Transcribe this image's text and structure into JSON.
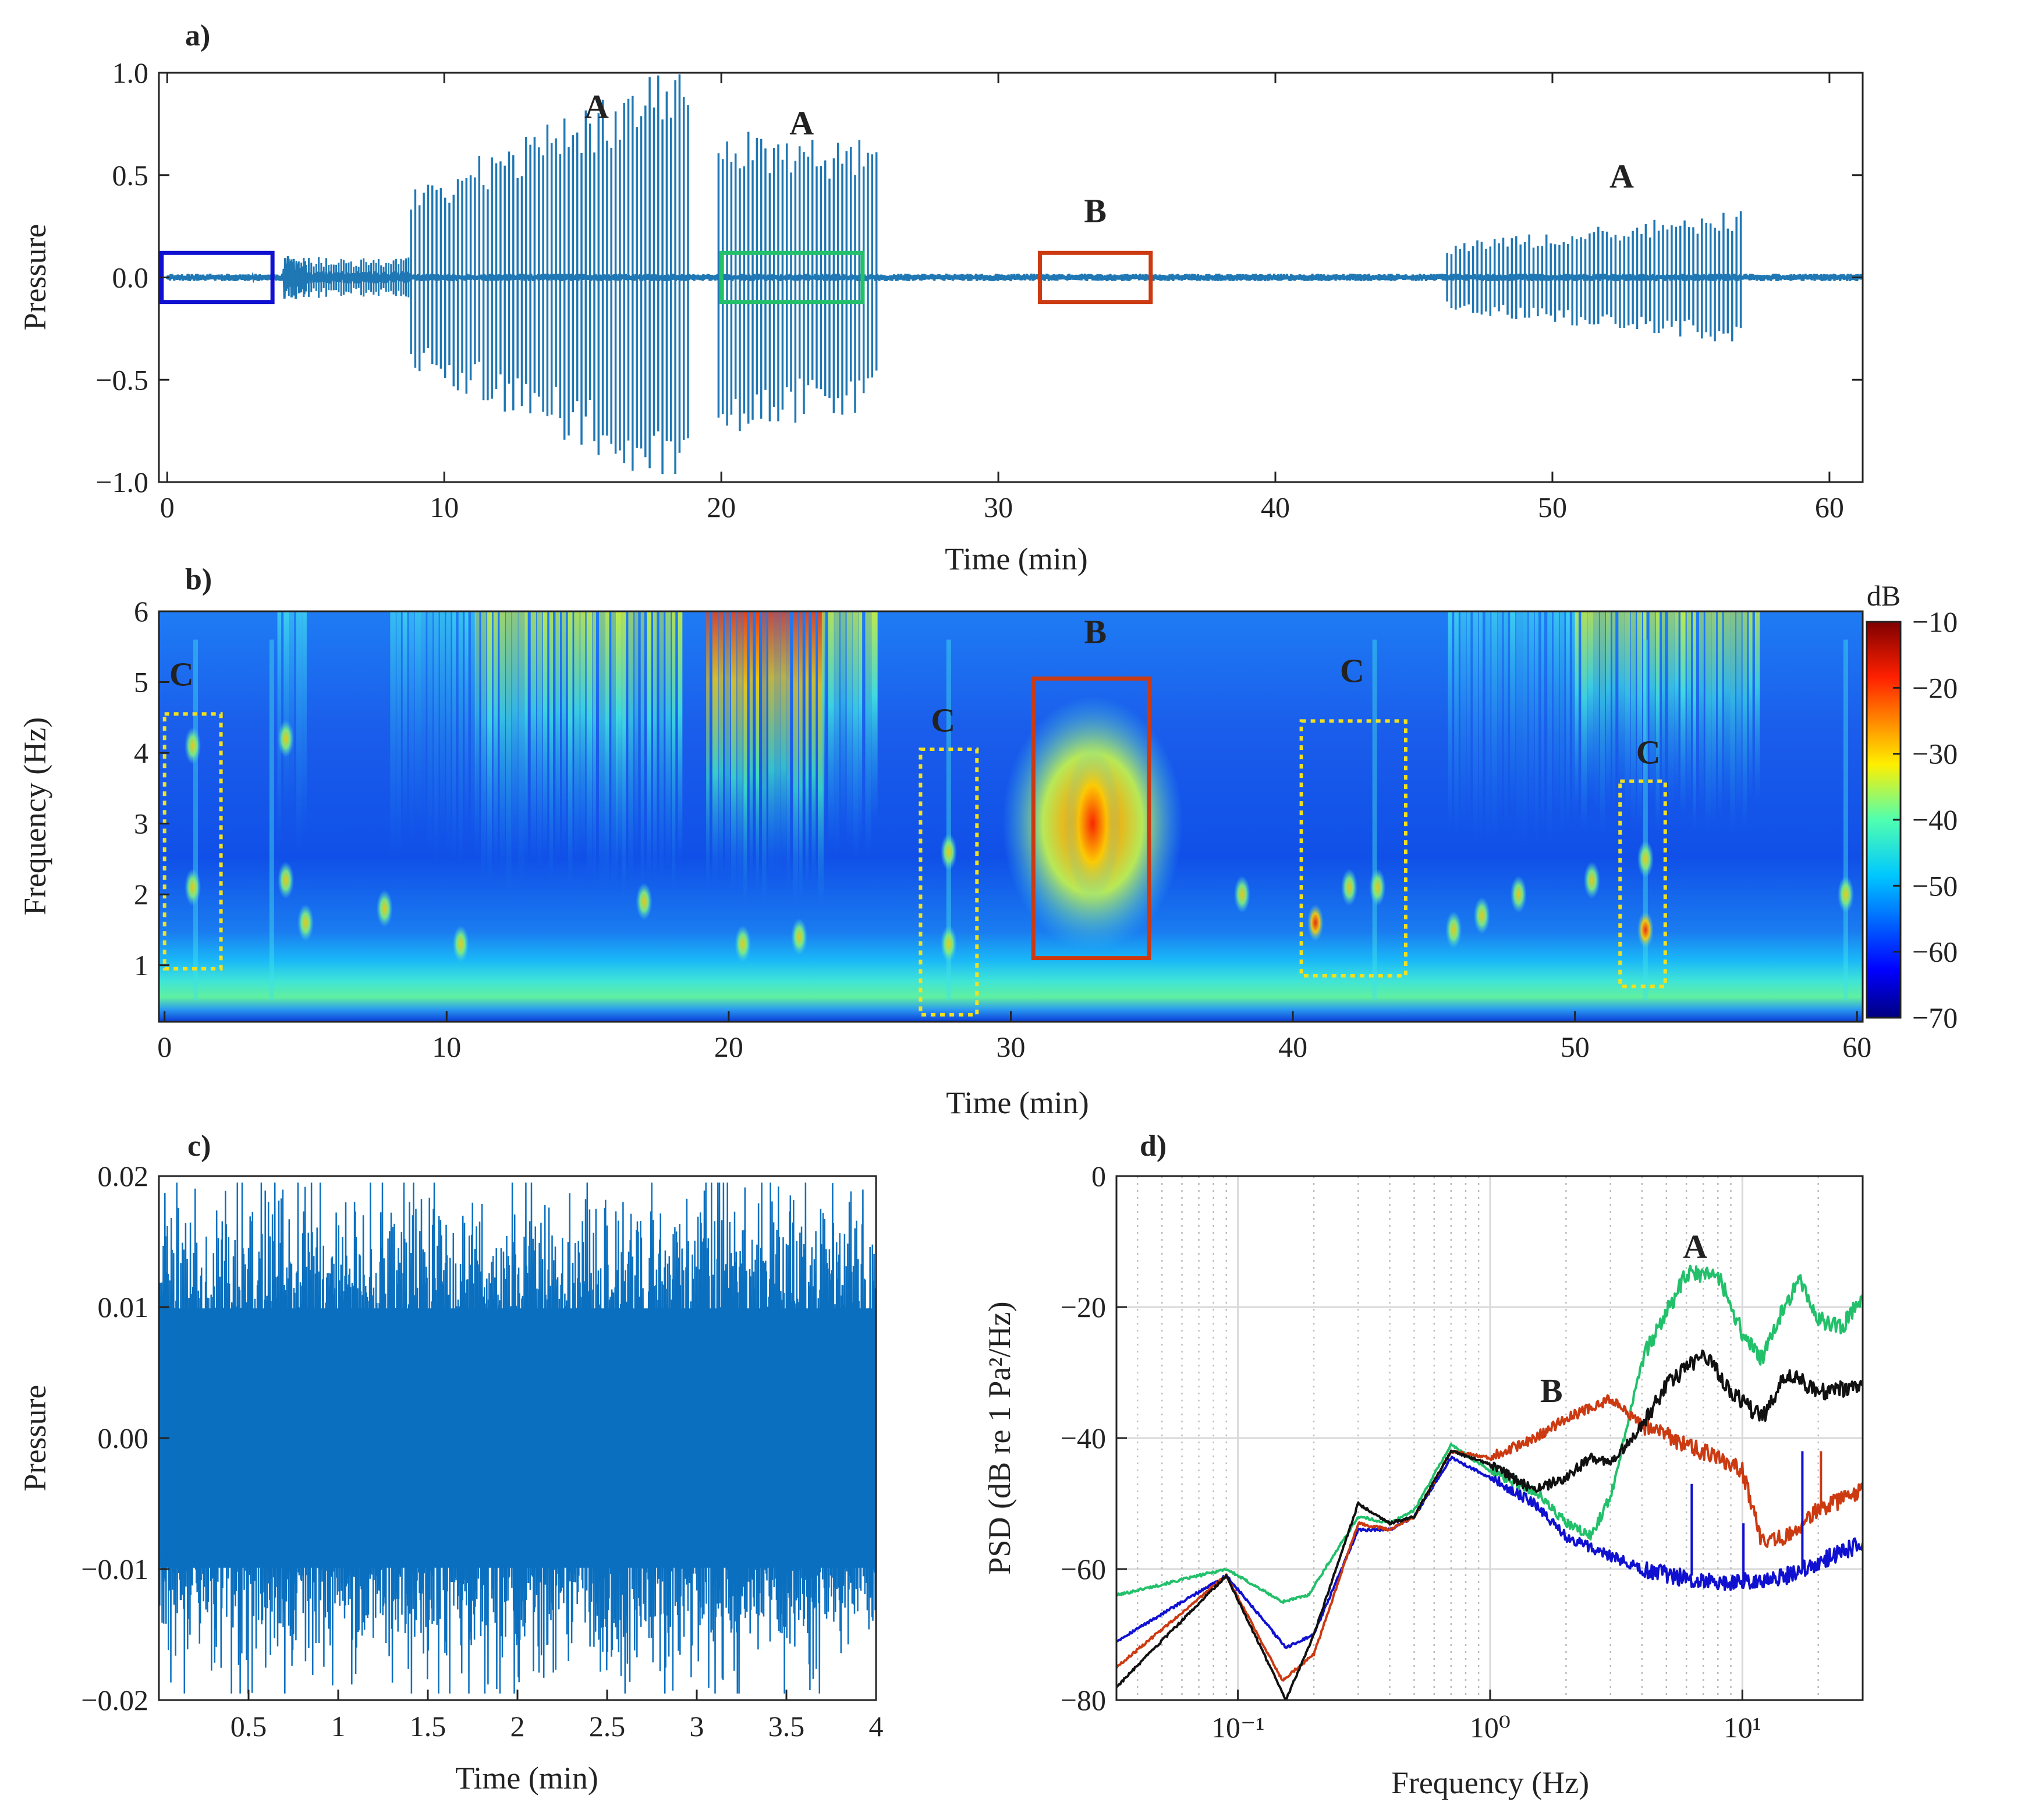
{
  "chart_data": [
    {
      "panel": "a)",
      "type": "line",
      "xlabel": "Time (min)",
      "ylabel": "Pressure",
      "xlim": [
        -0.3,
        61.2
      ],
      "ylim": [
        -1.0,
        1.0
      ],
      "xticks": [
        "0",
        "10",
        "20",
        "30",
        "40",
        "50",
        "60"
      ],
      "yticks": [
        "−1.0",
        "−0.5",
        "0.0",
        "0.5",
        "1.0"
      ],
      "series_color": "#1f77b4",
      "pulse_groups": [
        {
          "x_start": 8.8,
          "x_end": 18.8,
          "peak_start": 0.4,
          "peak_end": 1.0
        },
        {
          "x_start": 19.9,
          "x_end": 25.6,
          "peak_start": 0.7,
          "peak_end": 0.6
        },
        {
          "x_start": 46.2,
          "x_end": 56.8,
          "peak_start": 0.15,
          "peak_end": 0.3
        }
      ],
      "annotations": [
        {
          "text": "A",
          "x": 15.5,
          "y": 0.78
        },
        {
          "text": "A",
          "x": 22.9,
          "y": 0.7
        },
        {
          "text": "B",
          "x": 33.5,
          "y": 0.27
        },
        {
          "text": "A",
          "x": 52.5,
          "y": 0.44
        }
      ],
      "boxes": [
        {
          "x0": -0.2,
          "x1": 3.8,
          "y0": -0.12,
          "y1": 0.12,
          "color": "#1010d0",
          "style": "solid"
        },
        {
          "x0": 20.0,
          "x1": 25.1,
          "y0": -0.12,
          "y1": 0.12,
          "color": "#22c06a",
          "style": "solid"
        },
        {
          "x0": 31.5,
          "x1": 35.5,
          "y0": -0.12,
          "y1": 0.12,
          "color": "#cc3a12",
          "style": "solid"
        }
      ]
    },
    {
      "panel": "b)",
      "type": "heatmap",
      "xlabel": "Time (min)",
      "ylabel": "Frequency (Hz)",
      "xlim": [
        -0.2,
        60.2
      ],
      "ylim": [
        0.2,
        6.0
      ],
      "xticks": [
        "0",
        "10",
        "20",
        "30",
        "40",
        "50",
        "60"
      ],
      "yticks": [
        "1",
        "2",
        "3",
        "4",
        "5",
        "6"
      ],
      "colorbar": {
        "label": "dB",
        "min": -70,
        "max": -10,
        "ticks": [
          "−10",
          "−20",
          "−30",
          "−40",
          "−50",
          "−60",
          "−70"
        ]
      },
      "annotations": [
        {
          "text": "C",
          "x": 0.6,
          "y": 4.95
        },
        {
          "text": "C",
          "x": 27.6,
          "y": 4.3
        },
        {
          "text": "B",
          "x": 33.0,
          "y": 5.55
        },
        {
          "text": "C",
          "x": 42.1,
          "y": 5.0
        },
        {
          "text": "C",
          "x": 52.6,
          "y": 3.85
        }
      ],
      "boxes": [
        {
          "x0": 0.0,
          "x1": 2.0,
          "y0": 0.95,
          "y1": 4.55,
          "color": "#f0e020",
          "style": "dotted"
        },
        {
          "x0": 26.8,
          "x1": 28.8,
          "y0": 0.3,
          "y1": 4.05,
          "color": "#f0e020",
          "style": "dotted"
        },
        {
          "x0": 30.8,
          "x1": 34.9,
          "y0": 1.1,
          "y1": 5.05,
          "color": "#cc3a12",
          "style": "solid"
        },
        {
          "x0": 40.3,
          "x1": 44.0,
          "y0": 0.85,
          "y1": 4.45,
          "color": "#f0e020",
          "style": "dotted"
        },
        {
          "x0": 51.6,
          "x1": 53.2,
          "y0": 0.7,
          "y1": 3.6,
          "color": "#f0e020",
          "style": "dotted"
        }
      ]
    },
    {
      "panel": "c)",
      "type": "line",
      "xlabel": "Time (min)",
      "ylabel": "Pressure",
      "xlim": [
        0.0,
        4.0
      ],
      "ylim": [
        -0.02,
        0.02
      ],
      "xticks": [
        "0.5",
        "1",
        "1.5",
        "2",
        "2.5",
        "3",
        "3.5",
        "4"
      ],
      "yticks": [
        "−0.02",
        "−0.01",
        "0.00",
        "0.01",
        "0.02"
      ],
      "series_color": "#0a6fbf",
      "noise_amplitude": 0.011
    },
    {
      "panel": "d)",
      "type": "line",
      "xscale": "log",
      "xlabel": "Frequency (Hz)",
      "ylabel": "PSD (dB re 1 Pa²/Hz)",
      "xlim": [
        0.033,
        30
      ],
      "ylim": [
        -80,
        0
      ],
      "xticks": [
        "10⁻¹",
        "10⁰",
        "10¹"
      ],
      "yticks": [
        "−80",
        "−60",
        "−40",
        "−20",
        "0"
      ],
      "grid": true,
      "annotations": [
        {
          "text": "A",
          "x": 6.5,
          "y": -12.5
        },
        {
          "text": "B",
          "x": 1.75,
          "y": -34.5
        }
      ],
      "series": [
        {
          "color": "#1010d0",
          "points": [
            [
              0.033,
              -71
            ],
            [
              0.09,
              -61
            ],
            [
              0.155,
              -72
            ],
            [
              0.2,
              -70
            ],
            [
              0.3,
              -54
            ],
            [
              0.4,
              -54
            ],
            [
              0.5,
              -52
            ],
            [
              0.7,
              -43
            ],
            [
              1.0,
              -46
            ],
            [
              1.5,
              -50
            ],
            [
              2.0,
              -55
            ],
            [
              3.0,
              -58
            ],
            [
              4.0,
              -60
            ],
            [
              7.0,
              -62
            ],
            [
              10,
              -62
            ],
            [
              15,
              -61
            ],
            [
              30,
              -56
            ]
          ]
        },
        {
          "color": "#22c06a",
          "points": [
            [
              0.033,
              -64
            ],
            [
              0.09,
              -60
            ],
            [
              0.15,
              -65
            ],
            [
              0.19,
              -64
            ],
            [
              0.3,
              -52
            ],
            [
              0.4,
              -53
            ],
            [
              0.5,
              -51
            ],
            [
              0.7,
              -41
            ],
            [
              1.0,
              -45
            ],
            [
              1.5,
              -48
            ],
            [
              2.0,
              -53
            ],
            [
              2.5,
              -55
            ],
            [
              3.0,
              -49
            ],
            [
              4.0,
              -28
            ],
            [
              6.0,
              -15
            ],
            [
              8.0,
              -15
            ],
            [
              10,
              -24
            ],
            [
              12,
              -28
            ],
            [
              15,
              -19
            ],
            [
              17,
              -16
            ],
            [
              20,
              -22
            ],
            [
              25,
              -23
            ],
            [
              30,
              -18
            ]
          ]
        },
        {
          "color": "#cc3a12",
          "points": [
            [
              0.033,
              -75
            ],
            [
              0.09,
              -61
            ],
            [
              0.15,
              -77
            ],
            [
              0.2,
              -73
            ],
            [
              0.3,
              -53
            ],
            [
              0.4,
              -54
            ],
            [
              0.5,
              -52
            ],
            [
              0.7,
              -42
            ],
            [
              1.0,
              -43
            ],
            [
              1.5,
              -40
            ],
            [
              2.0,
              -37
            ],
            [
              3.0,
              -34
            ],
            [
              4.0,
              -38
            ],
            [
              6.0,
              -41
            ],
            [
              8.0,
              -43
            ],
            [
              10,
              -45
            ],
            [
              12,
              -56
            ],
            [
              15,
              -55
            ],
            [
              20,
              -51
            ],
            [
              30,
              -48
            ]
          ]
        },
        {
          "color": "#111111",
          "points": [
            [
              0.033,
              -78
            ],
            [
              0.09,
              -61
            ],
            [
              0.155,
              -80
            ],
            [
              0.2,
              -70
            ],
            [
              0.3,
              -50
            ],
            [
              0.4,
              -53
            ],
            [
              0.5,
              -52
            ],
            [
              0.7,
              -42
            ],
            [
              1.0,
              -44
            ],
            [
              1.5,
              -48
            ],
            [
              2.0,
              -46
            ],
            [
              2.5,
              -43
            ],
            [
              3.0,
              -44
            ],
            [
              4.0,
              -38
            ],
            [
              5.0,
              -32
            ],
            [
              7.0,
              -27
            ],
            [
              9.0,
              -33
            ],
            [
              12,
              -37
            ],
            [
              15,
              -30
            ],
            [
              20,
              -33
            ],
            [
              30,
              -32
            ]
          ]
        }
      ]
    }
  ]
}
